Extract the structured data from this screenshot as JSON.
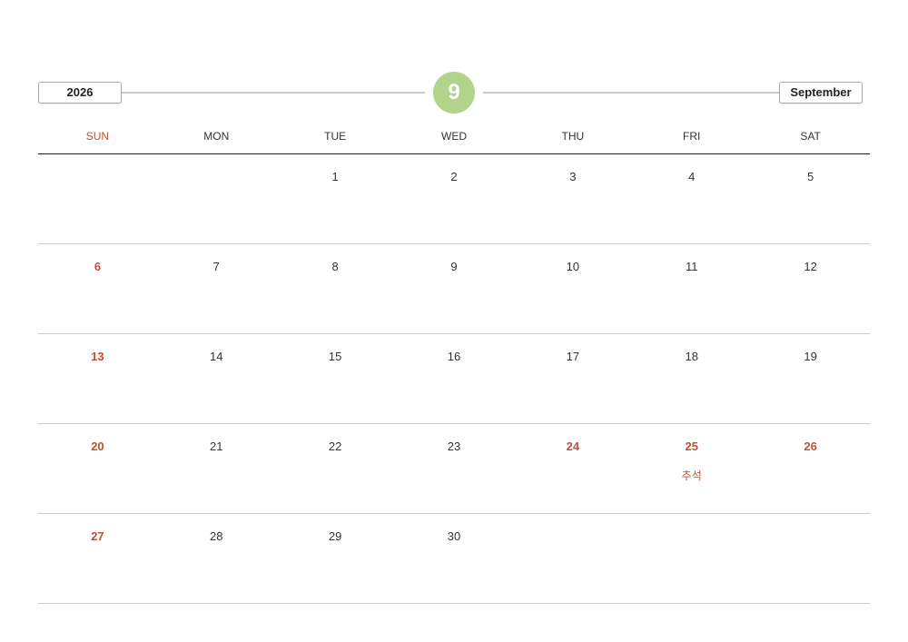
{
  "header": {
    "year": "2026",
    "month_number": "9",
    "month_name": "September"
  },
  "colors": {
    "accent": "#b2d38a",
    "holiday": "#c24f33"
  },
  "weekdays": [
    "SUN",
    "MON",
    "TUE",
    "WED",
    "THU",
    "FRI",
    "SAT"
  ],
  "weeks": [
    [
      {
        "day": ""
      },
      {
        "day": ""
      },
      {
        "day": "1"
      },
      {
        "day": "2"
      },
      {
        "day": "3"
      },
      {
        "day": "4"
      },
      {
        "day": "5"
      }
    ],
    [
      {
        "day": "6",
        "holiday": true
      },
      {
        "day": "7"
      },
      {
        "day": "8"
      },
      {
        "day": "9"
      },
      {
        "day": "10"
      },
      {
        "day": "11"
      },
      {
        "day": "12"
      }
    ],
    [
      {
        "day": "13",
        "holiday": true
      },
      {
        "day": "14"
      },
      {
        "day": "15"
      },
      {
        "day": "16"
      },
      {
        "day": "17"
      },
      {
        "day": "18"
      },
      {
        "day": "19"
      }
    ],
    [
      {
        "day": "20",
        "holiday": true
      },
      {
        "day": "21"
      },
      {
        "day": "22"
      },
      {
        "day": "23"
      },
      {
        "day": "24",
        "holiday": true
      },
      {
        "day": "25",
        "holiday": true,
        "label": "추석"
      },
      {
        "day": "26",
        "holiday": true
      }
    ],
    [
      {
        "day": "27",
        "holiday": true
      },
      {
        "day": "28"
      },
      {
        "day": "29"
      },
      {
        "day": "30"
      },
      {
        "day": ""
      },
      {
        "day": ""
      },
      {
        "day": ""
      }
    ]
  ]
}
